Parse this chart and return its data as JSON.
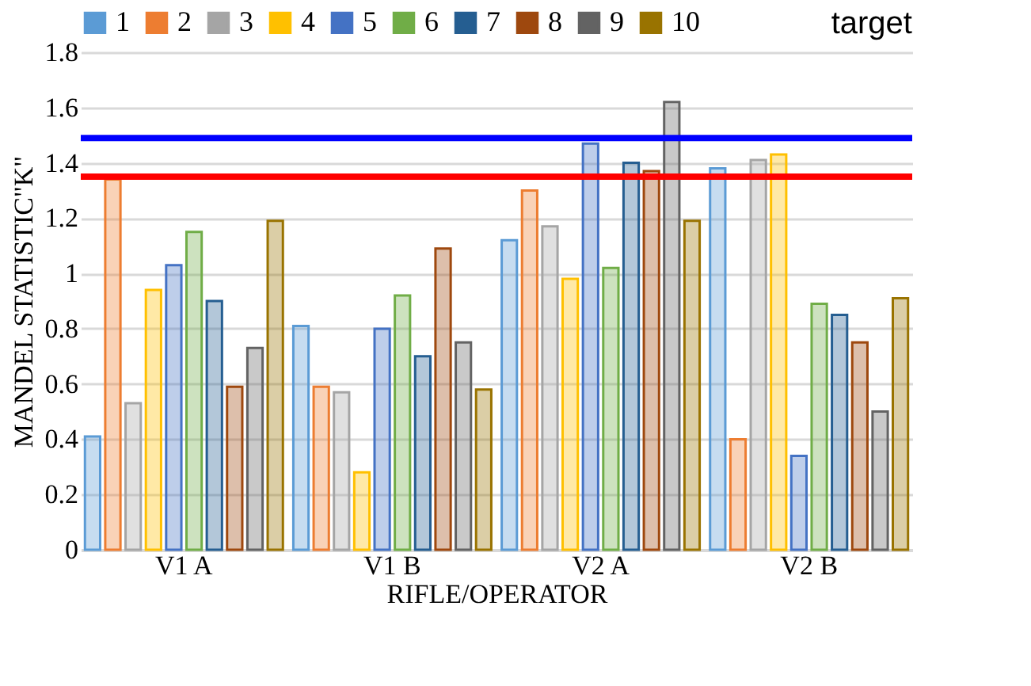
{
  "chart_data": {
    "type": "bar",
    "xlabel": "RIFLE/OPERATOR",
    "ylabel": "MANDEL STATISTIC\"K\"",
    "categories": [
      "V1 A",
      "V1 B",
      "V2 A",
      "V2 B"
    ],
    "series": [
      {
        "name": "1",
        "color": "#5b9bd5",
        "values": [
          0.41,
          0.81,
          1.12,
          1.38
        ]
      },
      {
        "name": "2",
        "color": "#ed7d31",
        "values": [
          1.34,
          0.59,
          1.3,
          0.4
        ]
      },
      {
        "name": "3",
        "color": "#a5a5a5",
        "values": [
          0.53,
          0.57,
          1.17,
          1.41
        ]
      },
      {
        "name": "4",
        "color": "#ffc000",
        "values": [
          0.94,
          0.28,
          0.98,
          1.43
        ]
      },
      {
        "name": "5",
        "color": "#4472c4",
        "values": [
          1.03,
          0.8,
          1.47,
          0.34
        ]
      },
      {
        "name": "6",
        "color": "#70ad47",
        "values": [
          1.15,
          0.92,
          1.02,
          0.89
        ]
      },
      {
        "name": "7",
        "color": "#255e91",
        "values": [
          0.9,
          0.7,
          1.4,
          0.85
        ]
      },
      {
        "name": "8",
        "color": "#9e480e",
        "values": [
          0.59,
          1.09,
          1.37,
          0.75
        ]
      },
      {
        "name": "9",
        "color": "#636363",
        "values": [
          0.73,
          0.75,
          1.62,
          0.5
        ]
      },
      {
        "name": "10",
        "color": "#997300",
        "values": [
          1.19,
          0.58,
          1.19,
          0.91
        ]
      }
    ],
    "ylim": [
      0,
      1.8
    ],
    "yticks": [
      0,
      0.2,
      0.4,
      0.6,
      0.8,
      1,
      1.2,
      1.4,
      1.6,
      1.8
    ],
    "ref_lines": [
      {
        "axis": "y",
        "value": 1.49,
        "color": "#0000ff"
      },
      {
        "axis": "y",
        "value": 1.35,
        "color": "#ff0000"
      }
    ],
    "annotations": [
      "target"
    ],
    "grid": "y",
    "legend": "top"
  }
}
